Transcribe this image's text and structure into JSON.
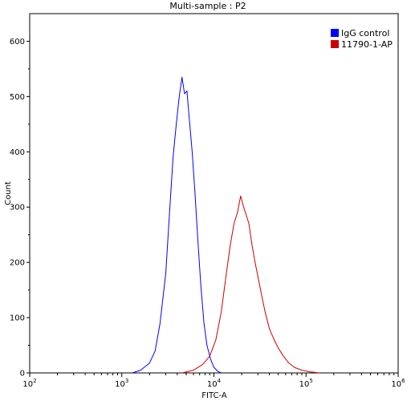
{
  "chart_data": {
    "type": "line",
    "title": "Multi-sample : P2",
    "xlabel": "FITC-A",
    "ylabel": "Count",
    "x_scale": "log",
    "xlim": [
      100,
      1000000
    ],
    "ylim": [
      0,
      650
    ],
    "x_tick_labels": [
      {
        "value": 100,
        "base": "10",
        "exp": "2"
      },
      {
        "value": 1000,
        "base": "10",
        "exp": "3"
      },
      {
        "value": 10000,
        "base": "10",
        "exp": "4"
      },
      {
        "value": 100000,
        "base": "10",
        "exp": "5"
      },
      {
        "value": 1000000,
        "base": "10",
        "exp": "6"
      }
    ],
    "y_ticks": [
      0,
      100,
      200,
      300,
      400,
      500,
      600
    ],
    "legend_position": "top-right",
    "series": [
      {
        "name": "IgG control",
        "color": "#0000ff",
        "x": [
          1300,
          1600,
          2000,
          2300,
          2600,
          3000,
          3300,
          3600,
          3900,
          4200,
          4500,
          4800,
          5100,
          5400,
          5800,
          6200,
          6700,
          7200,
          7800,
          8400,
          9200,
          10000,
          11000,
          12000
        ],
        "y": [
          0,
          5,
          18,
          40,
          90,
          180,
          290,
          390,
          450,
          500,
          535,
          505,
          510,
          460,
          400,
          330,
          240,
          160,
          90,
          50,
          25,
          10,
          3,
          0
        ]
      },
      {
        "name": "11790-1-AP",
        "color": "#cc0000",
        "x": [
          4500,
          6000,
          7500,
          9000,
          10500,
          12000,
          13500,
          15000,
          16500,
          18000,
          19500,
          21000,
          22500,
          24000,
          26000,
          28000,
          30000,
          33000,
          36000,
          40000,
          45000,
          50000,
          57000,
          65000,
          75000,
          90000,
          110000,
          140000
        ],
        "y": [
          0,
          5,
          15,
          30,
          60,
          110,
          175,
          230,
          270,
          290,
          320,
          300,
          285,
          270,
          230,
          200,
          175,
          140,
          110,
          80,
          60,
          45,
          30,
          18,
          10,
          5,
          2,
          0
        ]
      }
    ]
  }
}
